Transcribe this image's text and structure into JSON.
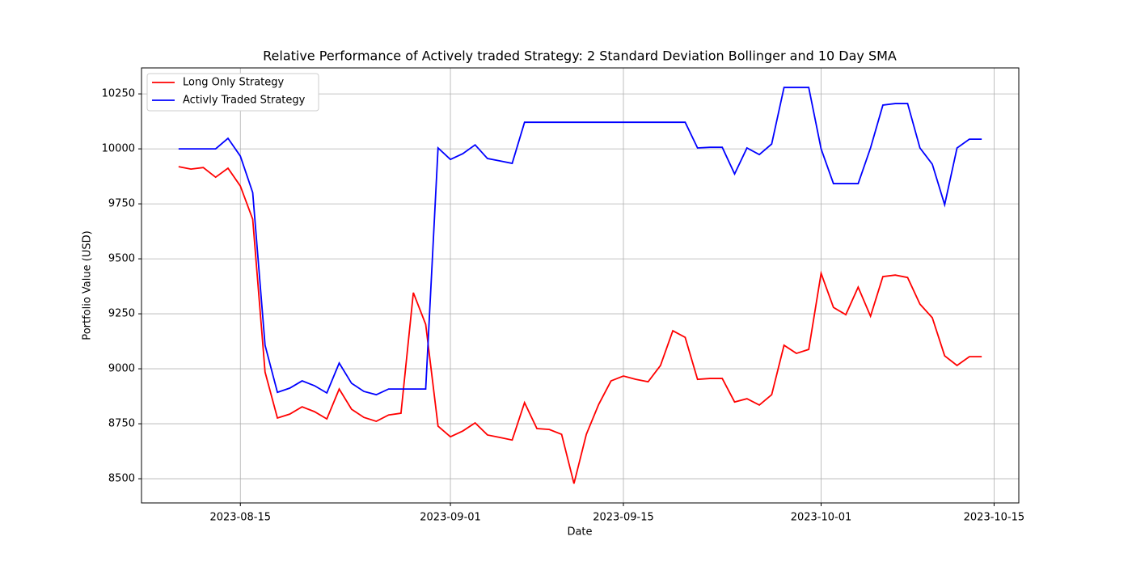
{
  "chart_data": {
    "type": "line",
    "title": "Relative Performance of Actively traded Strategy: 2 Standard Deviation Bollinger and 10 Day SMA",
    "x_label": "Date",
    "y_label": "Portfolio Value (USD)",
    "x": [
      "2023-08-10",
      "2023-08-11",
      "2023-08-12",
      "2023-08-13",
      "2023-08-14",
      "2023-08-15",
      "2023-08-16",
      "2023-08-17",
      "2023-08-18",
      "2023-08-19",
      "2023-08-20",
      "2023-08-21",
      "2023-08-22",
      "2023-08-23",
      "2023-08-24",
      "2023-08-25",
      "2023-08-26",
      "2023-08-27",
      "2023-08-28",
      "2023-08-29",
      "2023-08-30",
      "2023-08-31",
      "2023-09-01",
      "2023-09-02",
      "2023-09-03",
      "2023-09-04",
      "2023-09-05",
      "2023-09-06",
      "2023-09-07",
      "2023-09-08",
      "2023-09-09",
      "2023-09-10",
      "2023-09-11",
      "2023-09-12",
      "2023-09-13",
      "2023-09-14",
      "2023-09-15",
      "2023-09-16",
      "2023-09-17",
      "2023-09-18",
      "2023-09-19",
      "2023-09-20",
      "2023-09-21",
      "2023-09-22",
      "2023-09-23",
      "2023-09-24",
      "2023-09-25",
      "2023-09-26",
      "2023-09-27",
      "2023-09-28",
      "2023-09-29",
      "2023-09-30",
      "2023-10-01",
      "2023-10-02",
      "2023-10-03",
      "2023-10-04",
      "2023-10-05",
      "2023-10-06",
      "2023-10-07",
      "2023-10-08",
      "2023-10-09",
      "2023-10-10",
      "2023-10-11",
      "2023-10-12",
      "2023-10-13",
      "2023-10-14"
    ],
    "series": [
      {
        "name": "Long Only Strategy",
        "color": "#ff0000",
        "values": [
          9919,
          9908,
          9915,
          9871,
          9912,
          9831,
          9680,
          8985,
          8776,
          8794,
          8827,
          8805,
          8772,
          8908,
          8816,
          8779,
          8761,
          8790,
          8798,
          9346,
          9202,
          8739,
          8691,
          8717,
          8754,
          8699,
          8688,
          8676,
          8846,
          8728,
          8724,
          8702,
          8478,
          8702,
          8838,
          8945,
          8967,
          8952,
          8941,
          9015,
          9173,
          9143,
          8952,
          8956,
          8956,
          8849,
          8864,
          8835,
          8882,
          9107,
          9070,
          9088,
          9434,
          9279,
          9246,
          9371,
          9239,
          9419,
          9426,
          9415,
          9294,
          9232,
          9059,
          9015,
          9055,
          9055
        ]
      },
      {
        "name": "Activly Traded Strategy",
        "color": "#0000ff",
        "values": [
          10000,
          10000,
          10000,
          10000,
          10048,
          9967,
          9801,
          9107,
          8893,
          8912,
          8945,
          8923,
          8890,
          9026,
          8934,
          8897,
          8882,
          8908,
          8908,
          8908,
          8908,
          10004,
          9952,
          9978,
          10018,
          9956,
          9945,
          9934,
          10121,
          10121,
          10121,
          10121,
          10121,
          10121,
          10121,
          10121,
          10121,
          10121,
          10121,
          10121,
          10121,
          10121,
          10004,
          10007,
          10007,
          9886,
          10004,
          9974,
          10022,
          10279,
          10279,
          10279,
          10000,
          9842,
          9842,
          9842,
          10004,
          10199,
          10206,
          10206,
          10004,
          9930,
          9746,
          10004,
          10044,
          10044
        ]
      }
    ],
    "xlim": [
      "2023-08-07",
      "2023-10-17"
    ],
    "xticks": [
      "2023-08-15",
      "2023-09-01",
      "2023-09-15",
      "2023-10-01",
      "2023-10-15"
    ],
    "ylim": [
      8390,
      10368
    ],
    "yticks": [
      8500,
      8750,
      9000,
      9250,
      9500,
      9750,
      10000,
      10250
    ],
    "grid": true,
    "legend": "upper left"
  }
}
